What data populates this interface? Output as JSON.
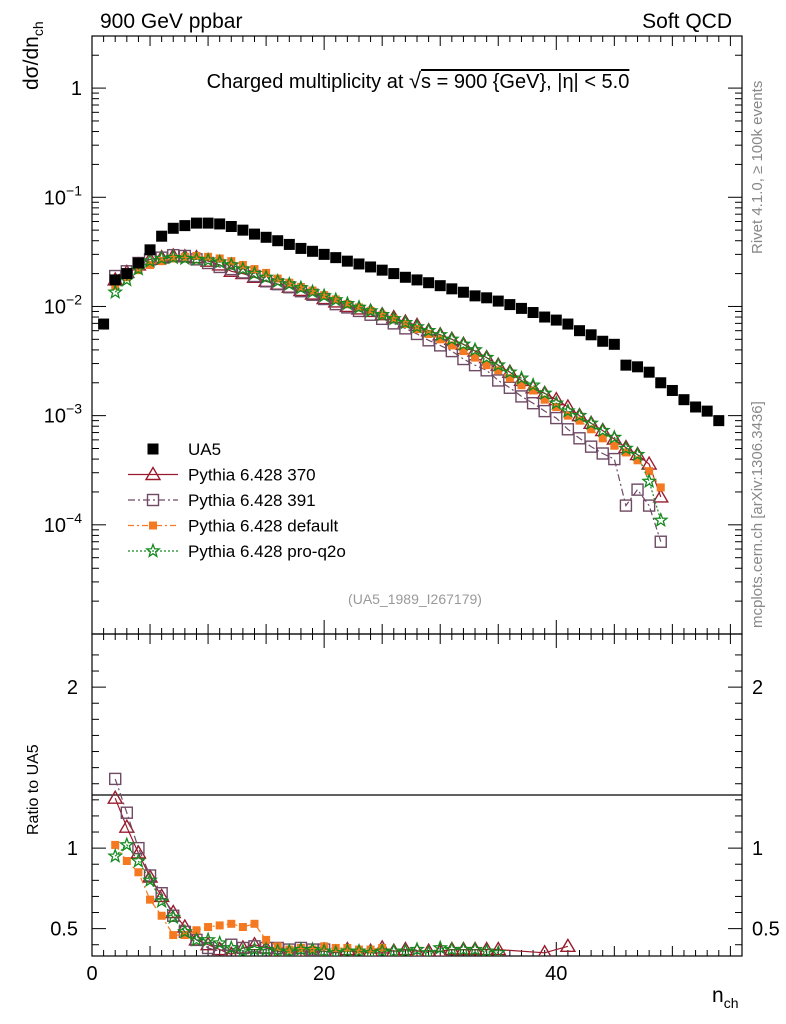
{
  "header": {
    "left": "900 GeV ppbar",
    "right": "Soft QCD"
  },
  "chart_data": {
    "type": "scatter",
    "title": "Charged multiplicity at √s = 900 {GeV}, |η| < 5.0",
    "title_parts": {
      "prefix": "Charged multiplicity at ",
      "sqrt": "√",
      "s": "s = 900 {GeV}, |η| < 5.0"
    },
    "ylabel_main": {
      "base": "dσ/dn",
      "sub": "ch"
    },
    "ylabel_ratio": "Ratio to UA5",
    "xlabel": {
      "base": "n",
      "sub": "ch"
    },
    "analysis_id": "(UA5_1989_I267179)",
    "side_text_top": "Rivet 4.1.0, ≥ 100k events",
    "side_text_bottom": "mcplots.cern.ch [arXiv:1306.3436]",
    "xlim": [
      0,
      56
    ],
    "ylim_main": [
      1e-05,
      3
    ],
    "ylim_ratio": [
      0.33,
      2.33
    ],
    "x_ticks": [
      "0",
      "20",
      "40"
    ],
    "x_tick_values": [
      0,
      20,
      40
    ],
    "y_ticks_main": [
      {
        "value": 1,
        "base": "1",
        "exp": ""
      },
      {
        "value": 0.1,
        "base": "10",
        "exp": "−1"
      },
      {
        "value": 0.01,
        "base": "10",
        "exp": "−2"
      },
      {
        "value": 0.001,
        "base": "10",
        "exp": "−3"
      },
      {
        "value": 0.0001,
        "base": "10",
        "exp": "−4"
      }
    ],
    "y_ticks_ratio": [
      "2",
      "1",
      "0.5"
    ],
    "y_tick_values_ratio": [
      2,
      1,
      0.5
    ],
    "data": {
      "name": "UA5",
      "color": "#000000",
      "x": [
        1,
        2,
        3,
        4,
        5,
        6,
        7,
        8,
        9,
        10,
        11,
        12,
        13,
        14,
        15,
        16,
        17,
        18,
        19,
        20,
        21,
        22,
        23,
        24,
        25,
        26,
        27,
        28,
        29,
        30,
        31,
        32,
        33,
        34,
        35,
        36,
        37,
        38,
        39,
        40,
        41,
        42,
        43,
        44,
        45,
        46,
        47,
        48,
        49,
        50,
        51,
        52,
        53,
        54
      ],
      "y": [
        0.0069,
        0.0175,
        0.02,
        0.025,
        0.033,
        0.044,
        0.052,
        0.055,
        0.058,
        0.058,
        0.057,
        0.054,
        0.05,
        0.046,
        0.043,
        0.04,
        0.037,
        0.034,
        0.032,
        0.03,
        0.028,
        0.026,
        0.0245,
        0.023,
        0.0215,
        0.02,
        0.0185,
        0.0175,
        0.0165,
        0.0155,
        0.0145,
        0.0135,
        0.0125,
        0.012,
        0.0112,
        0.0104,
        0.0096,
        0.0088,
        0.008,
        0.0075,
        0.0069,
        0.006,
        0.0055,
        0.0048,
        0.0045,
        0.0029,
        0.0028,
        0.0025,
        0.002,
        0.0017,
        0.0014,
        0.0012,
        0.0011,
        0.0009
      ]
    },
    "series": [
      {
        "name": "Pythia 6.428 370",
        "color": "#9a1b2e",
        "marker": "triangle",
        "dash": "",
        "x": [
          2,
          3,
          4,
          5,
          6,
          7,
          8,
          9,
          10,
          11,
          12,
          13,
          14,
          15,
          16,
          17,
          18,
          19,
          20,
          21,
          22,
          23,
          24,
          25,
          26,
          27,
          28,
          29,
          30,
          31,
          32,
          33,
          34,
          35,
          36,
          37,
          38,
          39,
          40,
          41,
          42,
          43,
          44,
          45,
          46,
          47,
          48,
          49
        ],
        "y": [
          0.0175,
          0.0205,
          0.024,
          0.027,
          0.028,
          0.029,
          0.0285,
          0.028,
          0.026,
          0.024,
          0.021,
          0.02,
          0.0185,
          0.017,
          0.016,
          0.015,
          0.014,
          0.013,
          0.0118,
          0.011,
          0.01,
          0.0095,
          0.009,
          0.0084,
          0.0079,
          0.0072,
          0.0067,
          0.006,
          0.0055,
          0.005,
          0.0045,
          0.0039,
          0.0034,
          0.0029,
          0.0025,
          0.0021,
          0.0018,
          0.0016,
          0.0014,
          0.0012,
          0.001,
          0.00085,
          0.00073,
          0.00061,
          0.00051,
          0.00044,
          0.00036,
          0.00018
        ],
        "ratio_x": [
          2,
          3,
          4,
          5,
          6,
          7,
          8,
          9,
          10,
          11,
          12,
          13,
          14,
          15,
          16,
          17,
          18,
          19,
          20,
          21,
          22,
          23,
          24,
          25,
          26,
          27,
          28,
          29,
          30,
          31,
          32,
          33,
          34,
          35,
          39,
          41
        ],
        "ratio": [
          1.31,
          1.13,
          0.97,
          0.82,
          0.7,
          0.6,
          0.51,
          0.43,
          0.4,
          0.37,
          0.34,
          0.38,
          0.4,
          0.38,
          0.36,
          0.35,
          0.36,
          0.36,
          0.36,
          0.35,
          0.37,
          0.35,
          0.36,
          0.38,
          0.36,
          0.37,
          0.36,
          0.36,
          0.36,
          0.37,
          0.37,
          0.37,
          0.37,
          0.37,
          0.35,
          0.39
        ]
      },
      {
        "name": "Pythia 6.428 391",
        "color": "#6e4a64",
        "marker": "square-open",
        "dash": "7 3 2 3",
        "x": [
          2,
          3,
          4,
          5,
          6,
          7,
          8,
          9,
          10,
          11,
          12,
          13,
          14,
          15,
          16,
          17,
          18,
          19,
          20,
          21,
          22,
          23,
          24,
          25,
          26,
          27,
          28,
          29,
          30,
          31,
          32,
          33,
          34,
          35,
          36,
          37,
          38,
          39,
          40,
          41,
          42,
          43,
          44,
          45,
          46,
          47,
          48,
          49
        ],
        "y": [
          0.019,
          0.021,
          0.025,
          0.027,
          0.028,
          0.0295,
          0.029,
          0.027,
          0.025,
          0.023,
          0.022,
          0.0205,
          0.019,
          0.017,
          0.016,
          0.015,
          0.0138,
          0.0128,
          0.0117,
          0.0105,
          0.0098,
          0.0091,
          0.0084,
          0.0077,
          0.007,
          0.0063,
          0.0056,
          0.0049,
          0.0044,
          0.0039,
          0.0033,
          0.0029,
          0.0026,
          0.0021,
          0.0018,
          0.0015,
          0.0013,
          0.0011,
          0.00095,
          0.00075,
          0.00062,
          0.00052,
          0.00045,
          0.0004,
          0.00015,
          0.00021,
          0.00015,
          7e-05
        ],
        "ratio_x": [
          2,
          3,
          4,
          5,
          6,
          7,
          8,
          9,
          10,
          11,
          12,
          13,
          14,
          15,
          16,
          17,
          18,
          19,
          20
        ],
        "ratio": [
          1.43,
          1.22,
          1.0,
          0.83,
          0.72,
          0.58,
          0.48,
          0.43,
          0.38,
          0.36,
          0.4,
          0.38,
          0.39,
          0.38,
          0.38,
          0.37,
          0.38,
          0.37,
          0.37
        ]
      },
      {
        "name": "Pythia 6.428 default",
        "color": "#f47920",
        "marker": "square-filled",
        "dash": "6 3 2 3",
        "x": [
          2,
          3,
          4,
          5,
          6,
          7,
          8,
          9,
          10,
          11,
          12,
          13,
          14,
          15,
          16,
          17,
          18,
          19,
          20,
          21,
          22,
          23,
          24,
          25,
          26,
          27,
          28,
          29,
          30,
          31,
          32,
          33,
          34,
          35,
          36,
          37,
          38,
          39,
          40,
          41,
          42,
          43,
          44,
          45,
          46,
          47,
          48,
          49
        ],
        "y": [
          0.0155,
          0.0185,
          0.0215,
          0.024,
          0.026,
          0.0275,
          0.0285,
          0.029,
          0.0285,
          0.0275,
          0.026,
          0.024,
          0.022,
          0.0203,
          0.018,
          0.0165,
          0.0151,
          0.014,
          0.0127,
          0.0116,
          0.0105,
          0.0098,
          0.0091,
          0.0083,
          0.0077,
          0.0069,
          0.0062,
          0.0056,
          0.005,
          0.0044,
          0.0039,
          0.0034,
          0.0029,
          0.0026,
          0.0022,
          0.0019,
          0.0017,
          0.0014,
          0.0012,
          0.001,
          0.0009,
          0.00075,
          0.00062,
          0.00053,
          0.00046,
          0.00039,
          0.00031,
          0.00022
        ],
        "ratio_x": [
          2,
          3,
          4,
          5,
          6,
          7,
          8,
          9,
          10,
          11,
          12,
          13,
          14,
          15,
          16,
          17,
          18,
          19,
          20,
          21,
          22,
          23,
          24,
          25
        ],
        "ratio": [
          1.02,
          0.92,
          0.85,
          0.68,
          0.58,
          0.46,
          0.46,
          0.49,
          0.51,
          0.52,
          0.53,
          0.51,
          0.53,
          0.43,
          0.39,
          0.37,
          0.38,
          0.37,
          0.39,
          0.38,
          0.38,
          0.37,
          0.37,
          0.38
        ]
      },
      {
        "name": "Pythia 6.428 pro-q2o",
        "color": "#138a1e",
        "marker": "star",
        "dash": "2 2",
        "x": [
          2,
          3,
          4,
          5,
          6,
          7,
          8,
          9,
          10,
          11,
          12,
          13,
          14,
          15,
          16,
          17,
          18,
          19,
          20,
          21,
          22,
          23,
          24,
          25,
          26,
          27,
          28,
          29,
          30,
          31,
          32,
          33,
          34,
          35,
          36,
          37,
          38,
          39,
          40,
          41,
          42,
          43,
          44,
          45,
          46,
          47,
          48,
          49
        ],
        "y": [
          0.0135,
          0.0175,
          0.022,
          0.026,
          0.0275,
          0.028,
          0.0275,
          0.027,
          0.0265,
          0.0255,
          0.024,
          0.022,
          0.02,
          0.0185,
          0.017,
          0.016,
          0.0148,
          0.0136,
          0.0125,
          0.0115,
          0.0106,
          0.0098,
          0.0091,
          0.0084,
          0.0077,
          0.0071,
          0.0065,
          0.006,
          0.0055,
          0.005,
          0.0045,
          0.004,
          0.0034,
          0.0029,
          0.0025,
          0.0022,
          0.0019,
          0.0016,
          0.0013,
          0.0011,
          0.001,
          0.00085,
          0.00073,
          0.00063,
          0.0005,
          0.00044,
          0.00025,
          0.00011
        ],
        "ratio_x": [
          2,
          3,
          4,
          5,
          6,
          7,
          8,
          9,
          10,
          11,
          12,
          13,
          14,
          15,
          16,
          17,
          18,
          19,
          20,
          21,
          22,
          23,
          24,
          25,
          26,
          27,
          28,
          29,
          30,
          31,
          32,
          33,
          34,
          35
        ],
        "ratio": [
          0.95,
          1.02,
          0.92,
          0.8,
          0.67,
          0.57,
          0.48,
          0.43,
          0.43,
          0.41,
          0.38,
          0.36,
          0.37,
          0.37,
          0.36,
          0.36,
          0.37,
          0.37,
          0.36,
          0.35,
          0.36,
          0.36,
          0.35,
          0.36,
          0.36,
          0.36,
          0.37,
          0.35,
          0.38,
          0.37,
          0.37,
          0.37,
          0.36,
          0.35
        ]
      }
    ]
  }
}
